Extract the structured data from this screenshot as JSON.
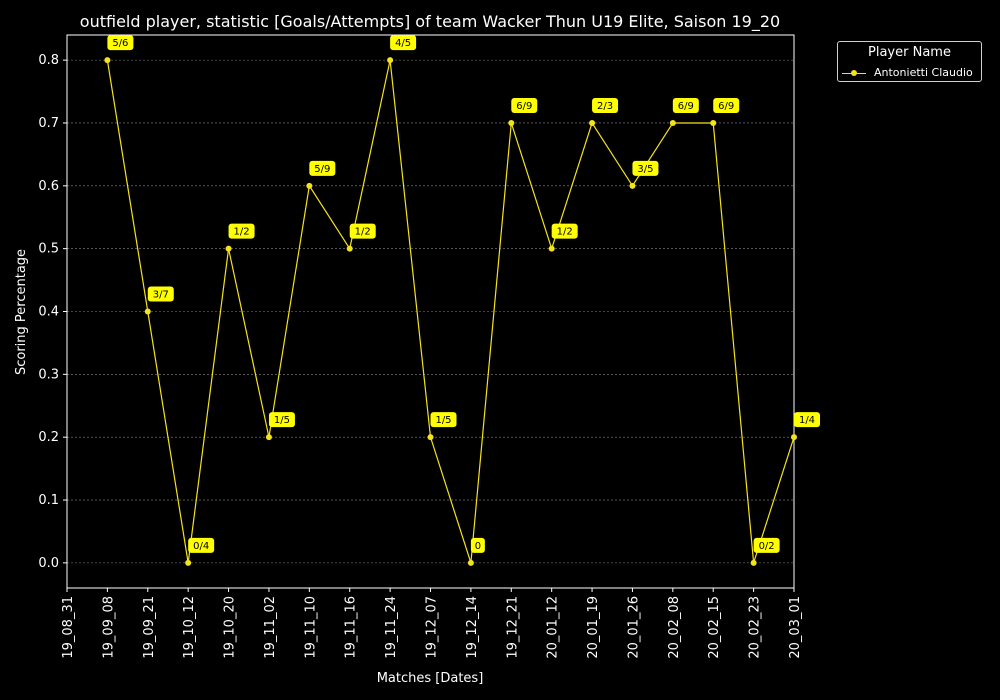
{
  "chart_data": {
    "type": "line",
    "title": "outfield player, statistic [Goals/Attempts] of team Wacker Thun U19 Elite, Saison 19_20",
    "xlabel": "Matches [Dates]",
    "ylabel": "Scoring Percentage",
    "categories": [
      "19_08_31",
      "19_09_08",
      "19_09_21",
      "19_10_12",
      "19_10_20",
      "19_11_02",
      "19_11_10",
      "19_11_16",
      "19_11_24",
      "19_12_07",
      "19_12_14",
      "19_12_21",
      "20_01_12",
      "20_01_19",
      "20_01_26",
      "20_02_08",
      "20_02_15",
      "20_02_23",
      "20_03_01"
    ],
    "series": [
      {
        "name": "Antonietti Claudio",
        "color": "#f5e31a",
        "points": [
          {
            "x": "19_09_08",
            "y": 0.8,
            "label": "5/6"
          },
          {
            "x": "19_09_21",
            "y": 0.4,
            "label": "3/7"
          },
          {
            "x": "19_10_12",
            "y": 0.0,
            "label": "0/4"
          },
          {
            "x": "19_10_20",
            "y": 0.5,
            "label": "1/2"
          },
          {
            "x": "19_11_02",
            "y": 0.2,
            "label": "1/5"
          },
          {
            "x": "19_11_10",
            "y": 0.6,
            "label": "5/9"
          },
          {
            "x": "19_11_16",
            "y": 0.5,
            "label": "1/2"
          },
          {
            "x": "19_11_24",
            "y": 0.8,
            "label": "4/5"
          },
          {
            "x": "19_12_07",
            "y": 0.2,
            "label": "1/5"
          },
          {
            "x": "19_12_14",
            "y": 0.0,
            "label": "0"
          },
          {
            "x": "19_12_21",
            "y": 0.7,
            "label": "6/9"
          },
          {
            "x": "20_01_12",
            "y": 0.5,
            "label": "1/2"
          },
          {
            "x": "20_01_19",
            "y": 0.7,
            "label": "2/3"
          },
          {
            "x": "20_01_26",
            "y": 0.6,
            "label": "3/5"
          },
          {
            "x": "20_02_08",
            "y": 0.7,
            "label": "6/9"
          },
          {
            "x": "20_02_15",
            "y": 0.7,
            "label": "6/9"
          },
          {
            "x": "20_02_23",
            "y": 0.0,
            "label": "0/2"
          },
          {
            "x": "20_03_01",
            "y": 0.2,
            "label": "1/4"
          }
        ]
      }
    ],
    "ylim": [
      -0.04,
      0.84
    ],
    "yticks": [
      0.0,
      0.1,
      0.2,
      0.3,
      0.4,
      0.5,
      0.6,
      0.7,
      0.8
    ],
    "grid": "horizontal",
    "legend": {
      "title": "Player Name",
      "placement": "outside-right-top"
    },
    "colors": {
      "background": "#000000",
      "line": "#f5e31a",
      "label_bg": "#ffff00",
      "grid": "#888888"
    }
  }
}
